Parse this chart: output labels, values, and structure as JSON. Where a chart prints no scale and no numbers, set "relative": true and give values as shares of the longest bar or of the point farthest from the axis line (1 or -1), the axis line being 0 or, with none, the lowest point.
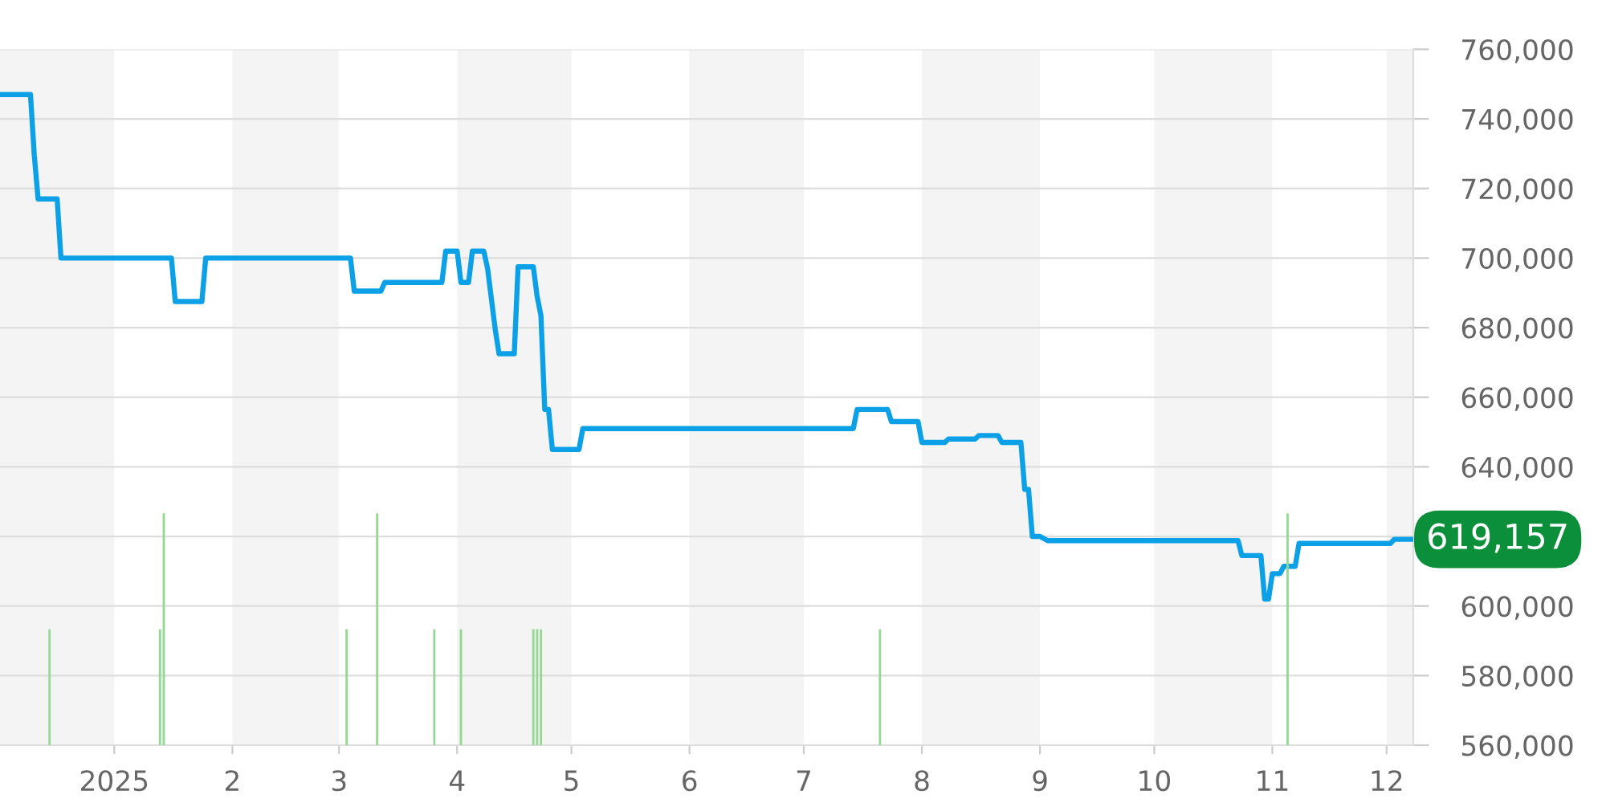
{
  "chart_data": [
    {
      "type": "line",
      "xlim": [
        "2024-12-02",
        "2025-12-08"
      ],
      "xticks": [
        {
          "value": "2025-01-01",
          "label": "2025"
        },
        {
          "value": "2025-02-01",
          "label": "2"
        },
        {
          "value": "2025-03-01",
          "label": "3"
        },
        {
          "value": "2025-04-01",
          "label": "4"
        },
        {
          "value": "2025-05-01",
          "label": "5"
        },
        {
          "value": "2025-06-01",
          "label": "6"
        },
        {
          "value": "2025-07-01",
          "label": "7"
        },
        {
          "value": "2025-08-01",
          "label": "8"
        },
        {
          "value": "2025-09-01",
          "label": "9"
        },
        {
          "value": "2025-10-01",
          "label": "10"
        },
        {
          "value": "2025-11-01",
          "label": "11"
        },
        {
          "value": "2025-12-01",
          "label": "12"
        }
      ],
      "ylim": [
        560000,
        760000
      ],
      "yticks": [
        {
          "value": 560000,
          "label": "560,000"
        },
        {
          "value": 580000,
          "label": "580,000"
        },
        {
          "value": 600000,
          "label": "600,000"
        },
        {
          "value": 620000,
          "label": null
        },
        {
          "value": 640000,
          "label": "640,000"
        },
        {
          "value": 660000,
          "label": "660,000"
        },
        {
          "value": 680000,
          "label": "680,000"
        },
        {
          "value": 700000,
          "label": "700,000"
        },
        {
          "value": 720000,
          "label": "720,000"
        },
        {
          "value": 740000,
          "label": "740,000"
        },
        {
          "value": 760000,
          "label": "760,000"
        }
      ],
      "grid": "y",
      "bands": [
        {
          "axis": "x",
          "from": "2024-12-02",
          "to": "2025-01-01",
          "color": "#f4f4f4"
        },
        {
          "axis": "x",
          "from": "2025-02-01",
          "to": "2025-03-01",
          "color": "#f4f4f4"
        },
        {
          "axis": "x",
          "from": "2025-04-01",
          "to": "2025-05-01",
          "color": "#f4f4f4"
        },
        {
          "axis": "x",
          "from": "2025-06-01",
          "to": "2025-07-01",
          "color": "#f4f4f4"
        },
        {
          "axis": "x",
          "from": "2025-08-01",
          "to": "2025-09-01",
          "color": "#f4f4f4"
        },
        {
          "axis": "x",
          "from": "2025-10-01",
          "to": "2025-11-01",
          "color": "#f4f4f4"
        },
        {
          "axis": "x",
          "from": "2025-12-01",
          "to": "2025-12-08",
          "color": "#f4f4f4"
        }
      ],
      "series": [
        {
          "color": "#0ca1e6",
          "x": [
            "2024-12-02",
            "2024-12-10",
            "2024-12-11",
            "2024-12-12",
            "2024-12-17",
            "2024-12-18",
            "2025-01-16",
            "2025-01-17",
            "2025-01-24",
            "2025-01-25",
            "2025-03-04",
            "2025-03-05",
            "2025-03-12",
            "2025-03-13",
            "2025-03-28",
            "2025-03-29",
            "2025-04-01",
            "2025-04-02",
            "2025-04-04",
            "2025-04-05",
            "2025-04-08",
            "2025-04-09",
            "2025-04-11",
            "2025-04-12",
            "2025-04-16",
            "2025-04-17",
            "2025-04-21",
            "2025-04-22",
            "2025-04-23",
            "2025-04-24",
            "2025-04-25",
            "2025-04-26",
            "2025-05-03",
            "2025-05-04",
            "2025-07-14",
            "2025-07-15",
            "2025-07-23",
            "2025-07-24",
            "2025-07-31",
            "2025-08-01",
            "2025-08-07",
            "2025-08-08",
            "2025-08-15",
            "2025-08-16",
            "2025-08-21",
            "2025-08-22",
            "2025-08-27",
            "2025-08-28",
            "2025-08-29",
            "2025-08-30",
            "2025-09-01",
            "2025-09-03",
            "2025-10-23",
            "2025-10-24",
            "2025-10-29",
            "2025-10-30",
            "2025-10-31",
            "2025-11-01",
            "2025-11-03",
            "2025-11-04",
            "2025-11-07",
            "2025-11-08",
            "2025-12-02",
            "2025-12-03",
            "2025-12-08"
          ],
          "values": [
            747000,
            747000,
            729500,
            717000,
            717000,
            700000,
            700000,
            687500,
            687500,
            700000,
            700000,
            690500,
            690500,
            693000,
            693000,
            702000,
            702000,
            693000,
            693000,
            702000,
            702000,
            697000,
            679500,
            672500,
            672500,
            697500,
            697500,
            689000,
            683500,
            656500,
            656500,
            645000,
            645000,
            651000,
            651000,
            656500,
            656500,
            653000,
            653000,
            647000,
            647000,
            648000,
            648000,
            649000,
            649000,
            647000,
            647000,
            633500,
            633500,
            620000,
            620000,
            618800,
            618800,
            614500,
            614500,
            602000,
            602000,
            609300,
            609300,
            611400,
            611400,
            618000,
            618000,
            619157,
            619157
          ],
          "value_labels": [
            null,
            null,
            null,
            null,
            null,
            null,
            null,
            null,
            null,
            null,
            null,
            null,
            null,
            null,
            null,
            null,
            null,
            null,
            null,
            null,
            null,
            null,
            null,
            null,
            null,
            null,
            null,
            null,
            null,
            null,
            null,
            null,
            null,
            null,
            null,
            null,
            null,
            null,
            null,
            null,
            null,
            null,
            null,
            null,
            null,
            null,
            null,
            null,
            null,
            null,
            null,
            null,
            null,
            null,
            null,
            null,
            null,
            null,
            null,
            null,
            null,
            null,
            null,
            null,
            "619,157"
          ]
        }
      ]
    },
    {
      "type": "bar",
      "relative": true,
      "xlim": [
        "2024-12-02",
        "2025-12-08"
      ],
      "color": "#93d993",
      "x": [
        "2024-12-15",
        "2025-01-13",
        "2025-01-14",
        "2025-03-03",
        "2025-03-11",
        "2025-03-26",
        "2025-04-02",
        "2025-04-21",
        "2025-04-22",
        "2025-04-23",
        "2025-07-21",
        "2025-11-05"
      ],
      "values": [
        0.5,
        0.5,
        1,
        0.5,
        1,
        0.5,
        0.5,
        0.5,
        0.5,
        0.5,
        0.5,
        1
      ]
    }
  ]
}
